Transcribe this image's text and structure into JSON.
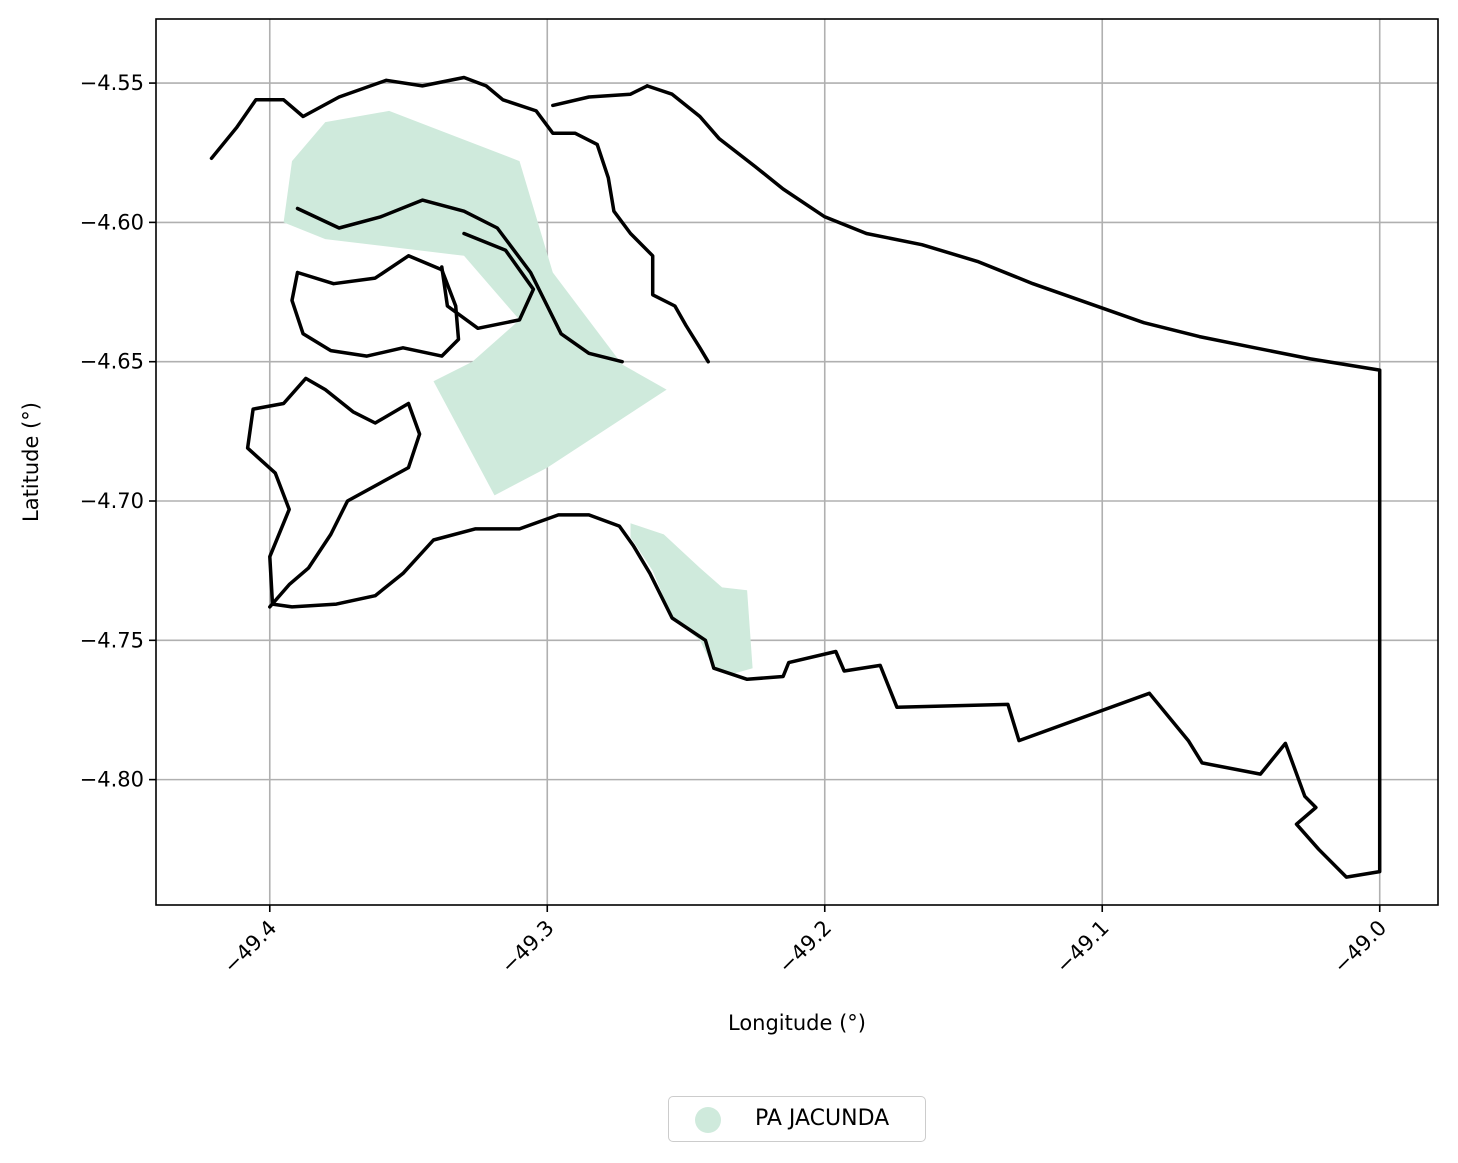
{
  "chart_data": {
    "type": "map",
    "title": "",
    "xlabel": "Longitude (°)",
    "ylabel": "Latitude (°)",
    "xlim": [
      -49.441,
      -48.979
    ],
    "ylim": [
      -4.845,
      -4.527
    ],
    "x_ticks": [
      -49.4,
      -49.3,
      -49.2,
      -49.1,
      -49.0
    ],
    "x_tick_labels": [
      "−49.4",
      "−49.3",
      "−49.2",
      "−49.1",
      "−49.0"
    ],
    "y_ticks": [
      -4.55,
      -4.6,
      -4.65,
      -4.7,
      -4.75,
      -4.8
    ],
    "y_tick_labels": [
      "−4.55",
      "−4.60",
      "−4.65",
      "−4.70",
      "−4.75",
      "−4.80"
    ],
    "grid": true,
    "legend": {
      "placement": "bottom-center",
      "entries": [
        {
          "name": "PA JACUNDA",
          "color": "#cfeadc"
        }
      ]
    },
    "boundary_color": "#000000",
    "fill_color": "#cfeadc",
    "filled_areas": [
      {
        "name": "PA JACUNDA",
        "polygons": [
          [
            [
              -49.357,
              -4.56
            ],
            [
              -49.31,
              -4.578
            ],
            [
              -49.298,
              -4.618
            ],
            [
              -49.273,
              -4.651
            ],
            [
              -49.257,
              -4.66
            ],
            [
              -49.3,
              -4.688
            ],
            [
              -49.319,
              -4.698
            ],
            [
              -49.341,
              -4.657
            ],
            [
              -49.327,
              -4.65
            ],
            [
              -49.31,
              -4.635
            ],
            [
              -49.33,
              -4.612
            ],
            [
              -49.38,
              -4.606
            ],
            [
              -49.395,
              -4.6
            ],
            [
              -49.392,
              -4.578
            ],
            [
              -49.38,
              -4.564
            ]
          ],
          [
            [
              -49.27,
              -4.708
            ],
            [
              -49.258,
              -4.712
            ],
            [
              -49.245,
              -4.724
            ],
            [
              -49.237,
              -4.731
            ],
            [
              -49.228,
              -4.732
            ],
            [
              -49.226,
              -4.76
            ],
            [
              -49.233,
              -4.762
            ],
            [
              -49.24,
              -4.76
            ],
            [
              -49.245,
              -4.75
            ],
            [
              -49.255,
              -4.742
            ],
            [
              -49.262,
              -4.725
            ],
            [
              -49.27,
              -4.713
            ]
          ]
        ]
      }
    ],
    "boundaries": [
      {
        "name": "outer",
        "points": [
          [
            -49.264,
            -4.551
          ],
          [
            -49.255,
            -4.554
          ],
          [
            -49.245,
            -4.562
          ],
          [
            -49.238,
            -4.57
          ],
          [
            -49.225,
            -4.58
          ],
          [
            -49.215,
            -4.588
          ],
          [
            -49.2,
            -4.598
          ],
          [
            -49.185,
            -4.604
          ],
          [
            -49.165,
            -4.608
          ],
          [
            -49.145,
            -4.614
          ],
          [
            -49.125,
            -4.622
          ],
          [
            -49.105,
            -4.629
          ],
          [
            -49.085,
            -4.636
          ],
          [
            -49.065,
            -4.641
          ],
          [
            -49.045,
            -4.645
          ],
          [
            -49.025,
            -4.649
          ],
          [
            -49.0,
            -4.653
          ],
          [
            -49.0,
            -4.833
          ],
          [
            -49.012,
            -4.835
          ],
          [
            -49.022,
            -4.825
          ],
          [
            -49.03,
            -4.816
          ],
          [
            -49.023,
            -4.81
          ],
          [
            -49.027,
            -4.806
          ],
          [
            -49.034,
            -4.787
          ],
          [
            -49.043,
            -4.798
          ],
          [
            -49.064,
            -4.794
          ],
          [
            -49.069,
            -4.786
          ],
          [
            -49.083,
            -4.769
          ],
          [
            -49.13,
            -4.786
          ],
          [
            -49.134,
            -4.773
          ],
          [
            -49.174,
            -4.774
          ],
          [
            -49.18,
            -4.759
          ],
          [
            -49.193,
            -4.761
          ],
          [
            -49.196,
            -4.754
          ],
          [
            -49.213,
            -4.758
          ],
          [
            -49.215,
            -4.763
          ],
          [
            -49.228,
            -4.764
          ],
          [
            -49.24,
            -4.76
          ],
          [
            -49.243,
            -4.75
          ],
          [
            -49.255,
            -4.742
          ],
          [
            -49.263,
            -4.726
          ],
          [
            -49.269,
            -4.716
          ],
          [
            -49.274,
            -4.709
          ],
          [
            -49.285,
            -4.705
          ],
          [
            -49.296,
            -4.705
          ],
          [
            -49.31,
            -4.71
          ],
          [
            -49.326,
            -4.71
          ],
          [
            -49.341,
            -4.714
          ],
          [
            -49.352,
            -4.726
          ],
          [
            -49.362,
            -4.734
          ],
          [
            -49.376,
            -4.737
          ],
          [
            -49.392,
            -4.738
          ],
          [
            -49.399,
            -4.737
          ],
          [
            -49.4,
            -4.72
          ],
          [
            -49.393,
            -4.703
          ],
          [
            -49.398,
            -4.69
          ],
          [
            -49.408,
            -4.681
          ],
          [
            -49.406,
            -4.667
          ],
          [
            -49.395,
            -4.665
          ],
          [
            -49.387,
            -4.656
          ],
          [
            -49.38,
            -4.66
          ],
          [
            -49.37,
            -4.668
          ],
          [
            -49.362,
            -4.672
          ],
          [
            -49.35,
            -4.665
          ],
          [
            -49.346,
            -4.676
          ],
          [
            -49.35,
            -4.688
          ],
          [
            -49.372,
            -4.7
          ],
          [
            -49.378,
            -4.712
          ],
          [
            -49.386,
            -4.724
          ],
          [
            -49.393,
            -4.73
          ],
          [
            -49.4,
            -4.738
          ]
        ]
      },
      {
        "name": "north-lobe",
        "points": [
          [
            -49.421,
            -4.577
          ],
          [
            -49.412,
            -4.566
          ],
          [
            -49.405,
            -4.556
          ],
          [
            -49.395,
            -4.556
          ],
          [
            -49.388,
            -4.562
          ],
          [
            -49.375,
            -4.555
          ],
          [
            -49.358,
            -4.549
          ],
          [
            -49.345,
            -4.551
          ],
          [
            -49.33,
            -4.548
          ],
          [
            -49.322,
            -4.551
          ],
          [
            -49.316,
            -4.556
          ],
          [
            -49.304,
            -4.56
          ],
          [
            -49.298,
            -4.568
          ],
          [
            -49.29,
            -4.568
          ],
          [
            -49.282,
            -4.572
          ],
          [
            -49.278,
            -4.584
          ],
          [
            -49.276,
            -4.596
          ],
          [
            -49.27,
            -4.604
          ],
          [
            -49.262,
            -4.612
          ],
          [
            -49.262,
            -4.626
          ],
          [
            -49.254,
            -4.63
          ],
          [
            -49.25,
            -4.637
          ],
          [
            -49.245,
            -4.645
          ],
          [
            -49.242,
            -4.65
          ]
        ]
      },
      {
        "name": "north-branch",
        "points": [
          [
            -49.298,
            -4.558
          ],
          [
            -49.285,
            -4.555
          ],
          [
            -49.27,
            -4.554
          ],
          [
            -49.264,
            -4.551
          ]
        ]
      },
      {
        "name": "inner-ridge",
        "points": [
          [
            -49.39,
            -4.595
          ],
          [
            -49.375,
            -4.602
          ],
          [
            -49.36,
            -4.598
          ],
          [
            -49.345,
            -4.592
          ],
          [
            -49.33,
            -4.596
          ],
          [
            -49.318,
            -4.602
          ],
          [
            -49.306,
            -4.618
          ],
          [
            -49.3,
            -4.63
          ],
          [
            -49.295,
            -4.64
          ],
          [
            -49.285,
            -4.647
          ],
          [
            -49.273,
            -4.65
          ]
        ]
      },
      {
        "name": "west-island",
        "points": [
          [
            -49.39,
            -4.618
          ],
          [
            -49.377,
            -4.622
          ],
          [
            -49.362,
            -4.62
          ],
          [
            -49.35,
            -4.612
          ],
          [
            -49.338,
            -4.617
          ],
          [
            -49.333,
            -4.63
          ],
          [
            -49.332,
            -4.642
          ],
          [
            -49.338,
            -4.648
          ],
          [
            -49.352,
            -4.645
          ],
          [
            -49.365,
            -4.648
          ],
          [
            -49.378,
            -4.646
          ],
          [
            -49.388,
            -4.64
          ],
          [
            -49.392,
            -4.628
          ],
          [
            -49.39,
            -4.618
          ]
        ]
      },
      {
        "name": "interior-inlet",
        "points": [
          [
            -49.33,
            -4.604
          ],
          [
            -49.315,
            -4.61
          ],
          [
            -49.305,
            -4.624
          ],
          [
            -49.31,
            -4.635
          ],
          [
            -49.325,
            -4.638
          ],
          [
            -49.336,
            -4.63
          ],
          [
            -49.338,
            -4.616
          ]
        ]
      }
    ]
  }
}
